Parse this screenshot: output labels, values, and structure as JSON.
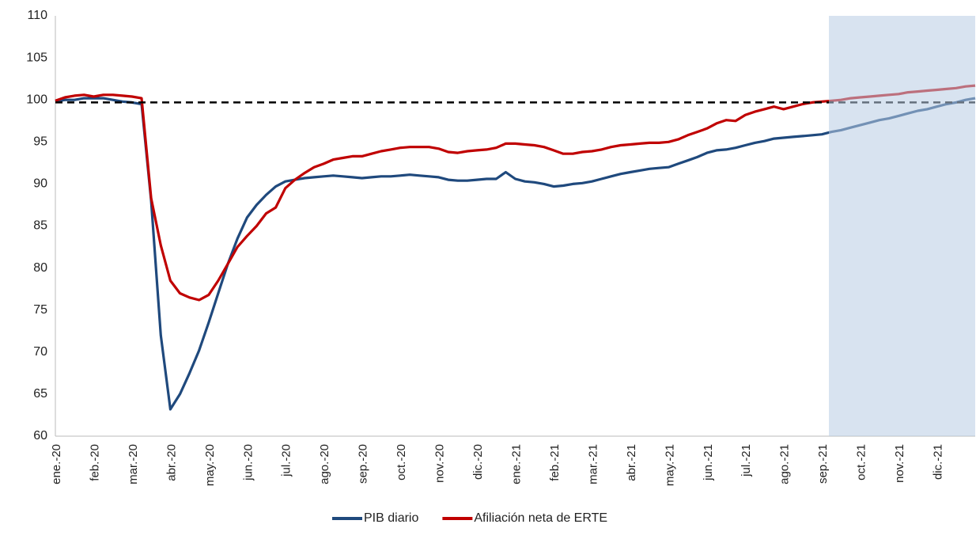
{
  "chart_data": {
    "type": "line",
    "categories": [
      "ene.-20",
      null,
      null,
      null,
      "feb.-20",
      null,
      null,
      null,
      "mar.-20",
      null,
      null,
      null,
      "abr.-20",
      null,
      null,
      null,
      "may.-20",
      null,
      null,
      null,
      "jun.-20",
      null,
      null,
      null,
      "jul.-20",
      null,
      null,
      null,
      "ago.-20",
      null,
      null,
      null,
      "sep.-20",
      null,
      null,
      null,
      "oct.-20",
      null,
      null,
      null,
      "nov.-20",
      null,
      null,
      null,
      "dic.-20",
      null,
      null,
      null,
      "ene.-21",
      null,
      null,
      null,
      "feb.-21",
      null,
      null,
      null,
      "mar.-21",
      null,
      null,
      null,
      "abr.-21",
      null,
      null,
      null,
      "may.-21",
      null,
      null,
      null,
      "jun.-21",
      null,
      null,
      null,
      "jul.-21",
      null,
      null,
      null,
      "ago.-21",
      null,
      null,
      null,
      "sep.-21",
      null,
      null,
      null,
      "oct.-21",
      null,
      null,
      null,
      "nov.-21",
      null,
      null,
      null,
      "dic.-21",
      null,
      null,
      null,
      null
    ],
    "series": [
      {
        "name": "PIB diario",
        "color": "#1f497d",
        "values": [
          99.8,
          100,
          100,
          100.2,
          100.2,
          100.2,
          100,
          99.8,
          99.7,
          99.5,
          88,
          72,
          63.2,
          65,
          67.5,
          70.2,
          73.5,
          77,
          80.5,
          83.5,
          86,
          87.5,
          88.7,
          89.7,
          90.3,
          90.5,
          90.7,
          90.8,
          90.9,
          91,
          90.9,
          90.8,
          90.7,
          90.8,
          90.9,
          90.9,
          91,
          91.1,
          91,
          90.9,
          90.8,
          90.5,
          90.4,
          90.4,
          90.5,
          90.6,
          90.6,
          91.4,
          90.6,
          90.3,
          90.2,
          90,
          89.7,
          89.8,
          90,
          90.1,
          90.3,
          90.6,
          90.9,
          91.2,
          91.4,
          91.6,
          91.8,
          91.9,
          92,
          92.4,
          92.8,
          93.2,
          93.7,
          94,
          94.1,
          94.3,
          94.6,
          94.9,
          95.1,
          95.4,
          95.5,
          95.6,
          95.7,
          95.8,
          95.9,
          96.2,
          96.4,
          96.7,
          97,
          97.3,
          97.6,
          97.8,
          98.1,
          98.4,
          98.7,
          98.9,
          99.2,
          99.5,
          99.7,
          100,
          100.2
        ]
      },
      {
        "name": "Afiliación neta de ERTE",
        "color": "#c00000",
        "values": [
          99.9,
          100.3,
          100.5,
          100.6,
          100.4,
          100.6,
          100.6,
          100.5,
          100.4,
          100.2,
          88.3,
          82.7,
          78.5,
          77,
          76.5,
          76.2,
          76.8,
          78.5,
          80.5,
          82.5,
          83.8,
          85,
          86.5,
          87.2,
          89.5,
          90.5,
          91.3,
          92,
          92.4,
          92.9,
          93.1,
          93.3,
          93.3,
          93.6,
          93.9,
          94.1,
          94.3,
          94.4,
          94.4,
          94.4,
          94.2,
          93.8,
          93.7,
          93.9,
          94,
          94.1,
          94.3,
          94.8,
          94.8,
          94.7,
          94.6,
          94.4,
          94,
          93.6,
          93.6,
          93.8,
          93.9,
          94.1,
          94.4,
          94.6,
          94.7,
          94.8,
          94.9,
          94.9,
          95,
          95.3,
          95.8,
          96.2,
          96.6,
          97.2,
          97.6,
          97.5,
          98.2,
          98.6,
          98.9,
          99.2,
          98.9,
          99.2,
          99.5,
          99.7,
          99.8,
          99.9,
          100,
          100.2,
          100.3,
          100.4,
          100.5,
          100.6,
          100.7,
          100.9,
          101,
          101.1,
          101.2,
          101.3,
          101.4,
          101.6,
          101.7
        ]
      }
    ],
    "reference_line": 99.7,
    "ylim": [
      60,
      110
    ],
    "yticks": [
      60,
      65,
      70,
      75,
      80,
      85,
      90,
      95,
      100,
      105,
      110
    ],
    "grid": false,
    "legend": "bottom"
  }
}
